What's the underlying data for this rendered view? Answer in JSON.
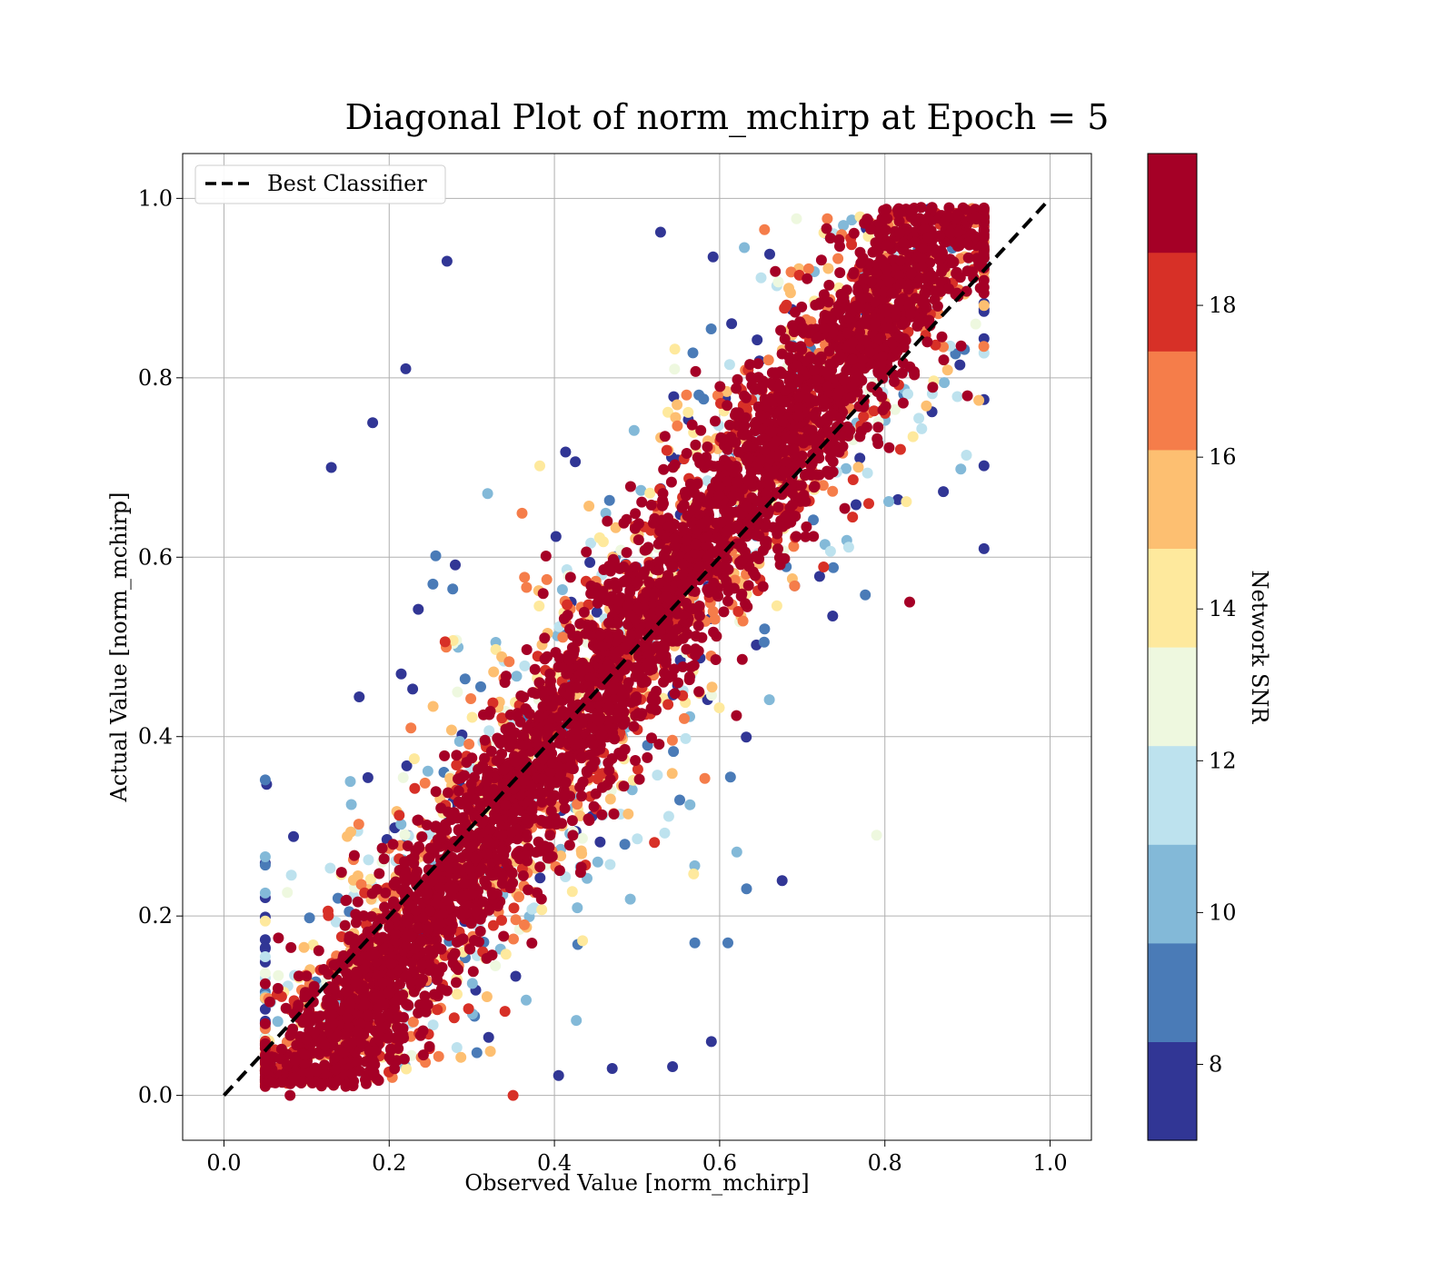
{
  "chart_data": {
    "type": "scatter",
    "title": "Diagonal Plot of norm_mchirp at Epoch = 5",
    "xlabel": "Observed Value [norm_mchirp]",
    "ylabel": "Actual Value [norm_mchirp]",
    "xlim": [
      -0.05,
      1.05
    ],
    "ylim": [
      -0.05,
      1.05
    ],
    "xticks": [
      "0.0",
      "0.2",
      "0.4",
      "0.6",
      "0.8",
      "1.0"
    ],
    "yticks": [
      "0.0",
      "0.2",
      "0.4",
      "0.6",
      "0.8",
      "1.0"
    ],
    "grid": true,
    "legend": {
      "position": "upper-left",
      "entries": [
        {
          "label": "Best Classifier",
          "style": "dashed",
          "color": "#000000"
        }
      ]
    },
    "reference_line": {
      "label": "Best Classifier",
      "x": [
        0.0,
        1.0
      ],
      "y": [
        0.0,
        1.0
      ]
    },
    "colorbar": {
      "label": "Network SNR",
      "range": [
        7,
        20
      ],
      "tick_labels": [
        "8",
        "10",
        "12",
        "14",
        "16",
        "18"
      ],
      "tick_values": [
        8,
        10,
        12,
        14,
        16,
        18
      ],
      "colors": [
        "#313695",
        "#4a7bb7",
        "#83b9d8",
        "#bde2ee",
        "#eef8df",
        "#fee99d",
        "#fdbf71",
        "#f57d4a",
        "#d73027",
        "#a50026"
      ]
    },
    "points": {
      "description_note": "",
      "sample": [
        [
          0.13,
          0.7,
          7.5
        ],
        [
          0.18,
          0.75,
          7.5
        ],
        [
          0.27,
          0.93,
          7.5
        ],
        [
          0.22,
          0.81,
          7.5
        ],
        [
          0.47,
          0.03,
          7.5
        ],
        [
          0.59,
          0.06,
          7.5
        ],
        [
          0.57,
          0.17,
          8.5
        ],
        [
          0.61,
          0.17,
          8.5
        ],
        [
          0.9,
          0.95,
          19.5
        ],
        [
          0.9,
          0.78,
          19.5
        ],
        [
          0.83,
          0.55,
          19.5
        ],
        [
          0.08,
          0.0,
          19.5
        ],
        [
          0.79,
          0.29,
          13.0
        ],
        [
          0.91,
          0.86,
          12.5
        ],
        [
          0.05,
          0.08,
          19.5
        ],
        [
          0.35,
          0.0,
          17.5
        ]
      ]
    }
  }
}
